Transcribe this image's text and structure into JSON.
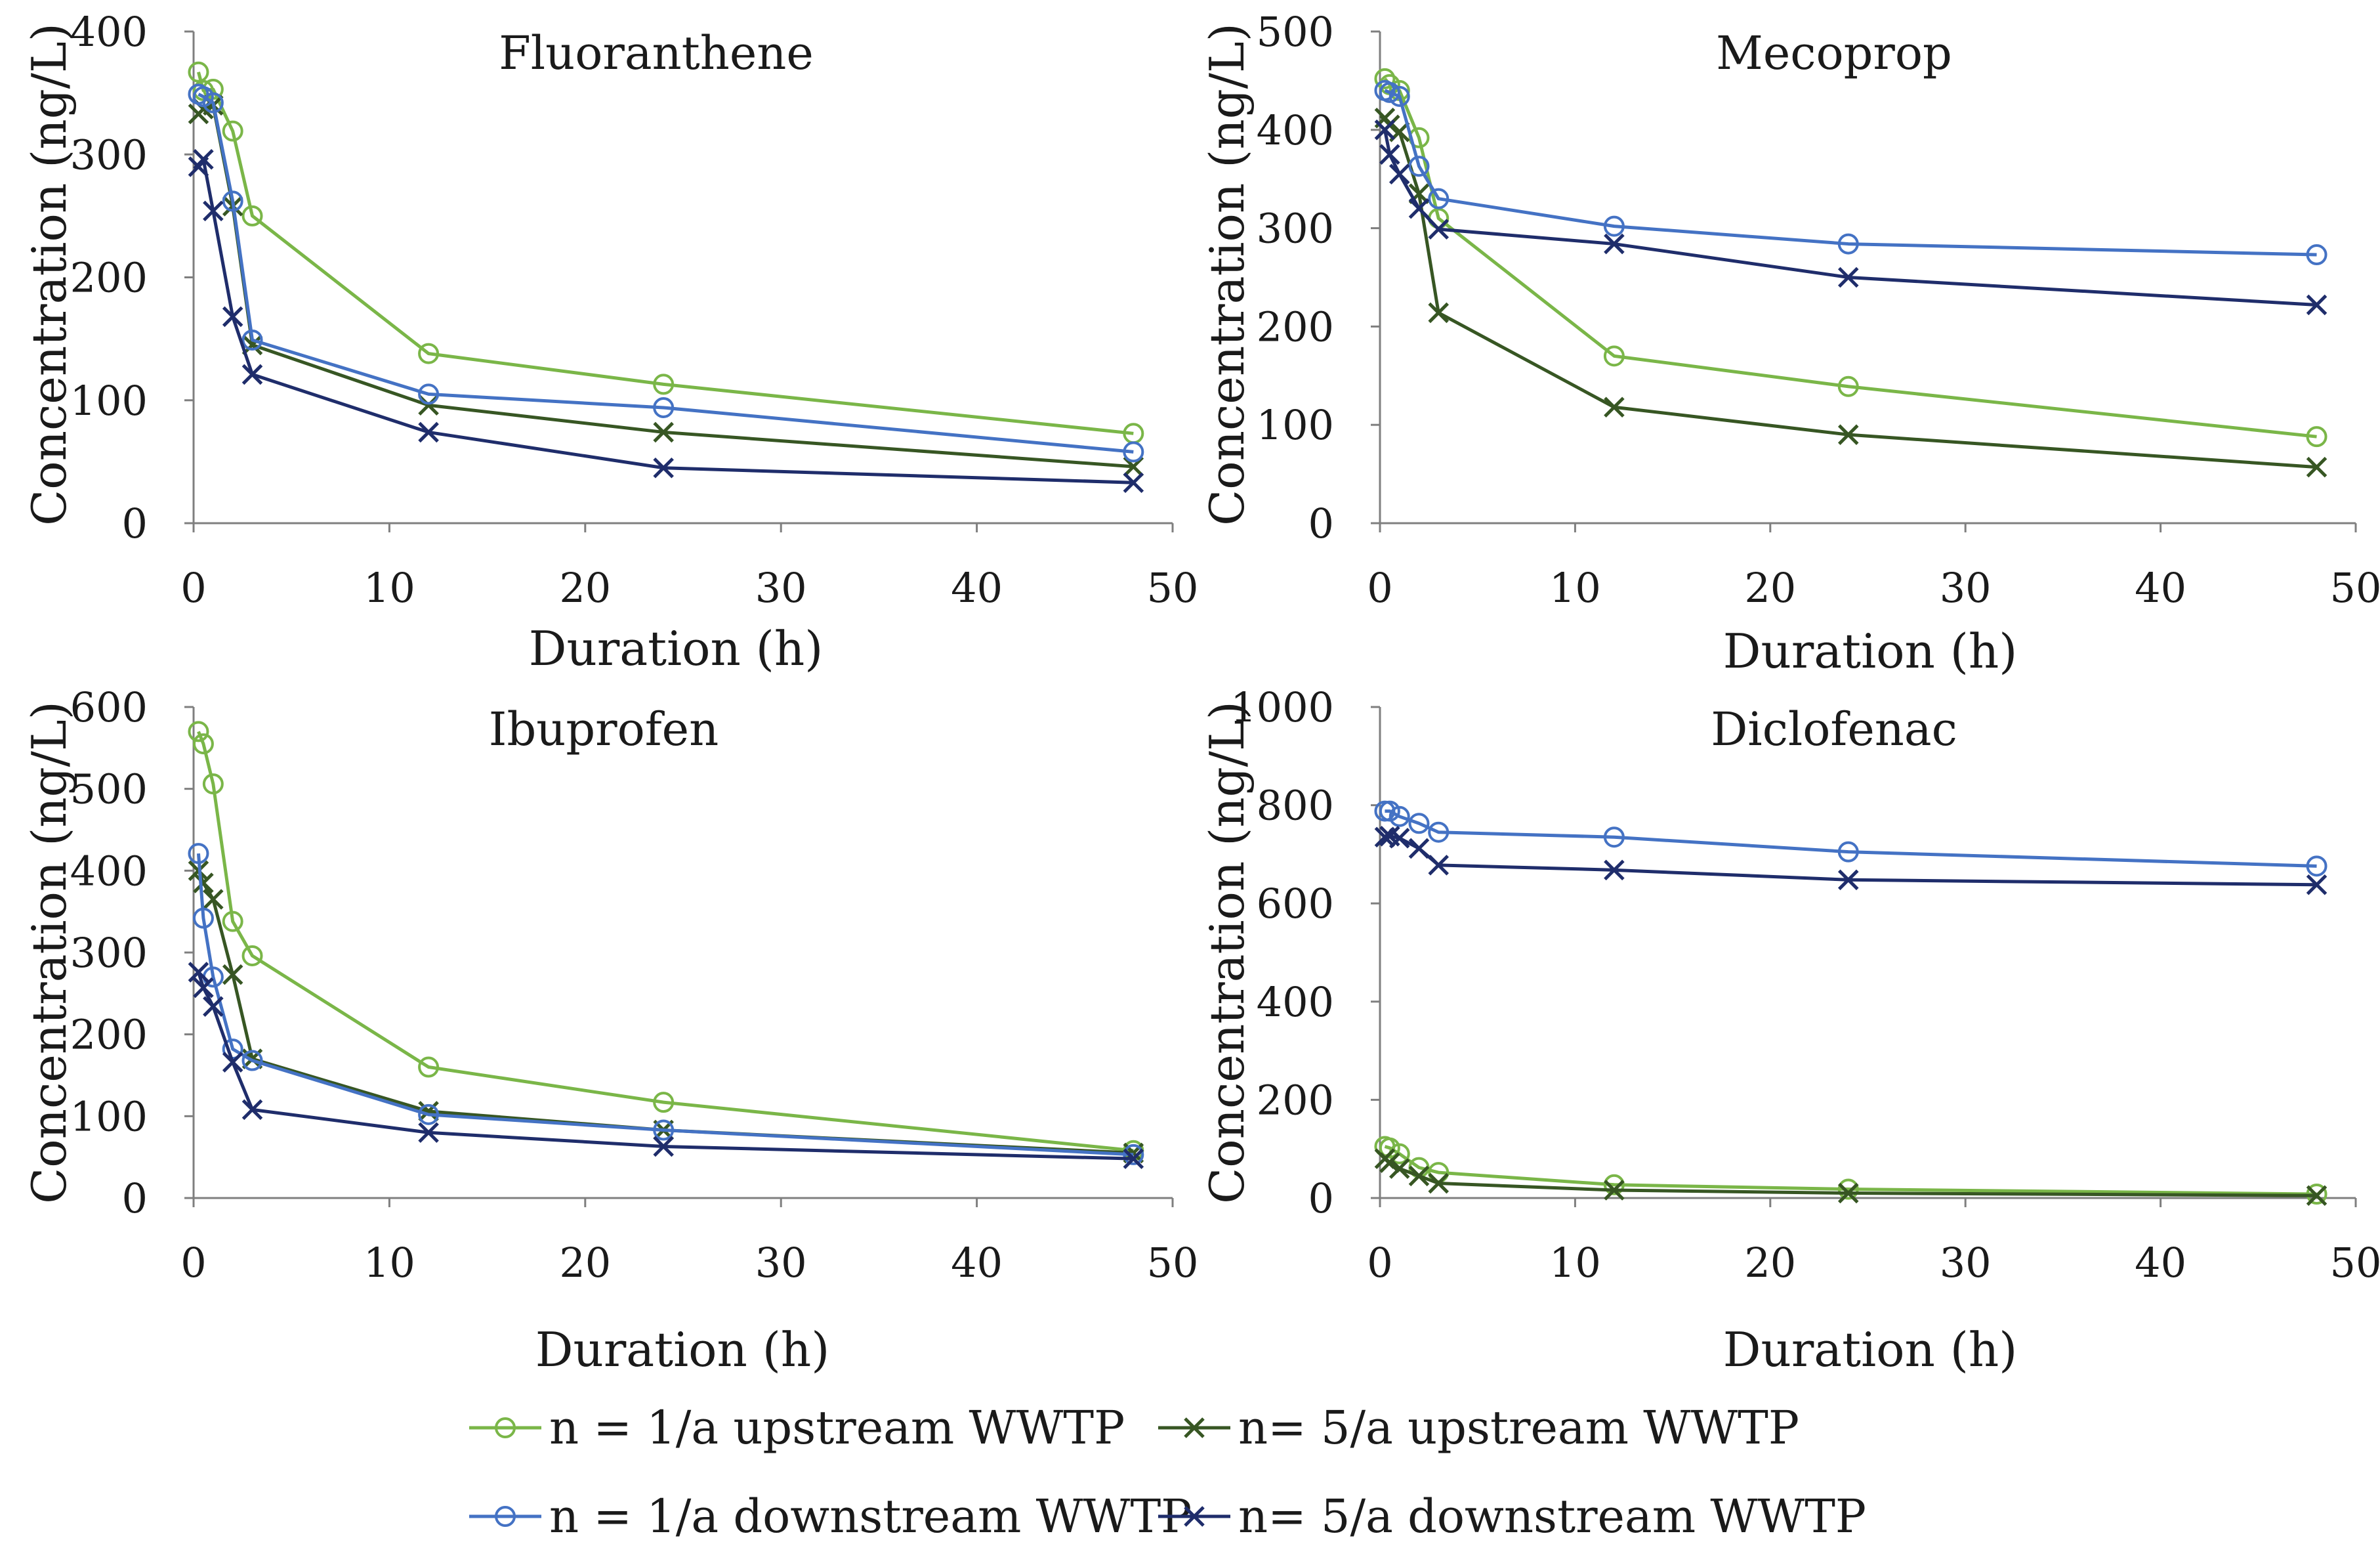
{
  "figure": {
    "legend": [
      {
        "label": "n = 1/a upstream WWTP",
        "color": "#7AB648",
        "marker": "circle"
      },
      {
        "label": "n= 5/a upstream WWTP",
        "color": "#375623",
        "marker": "x"
      },
      {
        "label": "n = 1/a downstream WWTP",
        "color": "#4472C4",
        "marker": "circle"
      },
      {
        "label": "n= 5/a downstream WWTP",
        "color": "#1F2D6B",
        "marker": "x"
      }
    ]
  },
  "chart_data": [
    {
      "type": "line",
      "title": "Fluoranthene",
      "xlabel": "Duration (h)",
      "ylabel": "Concentration (ng/L)",
      "xlim": [
        0,
        50
      ],
      "ylim": [
        0,
        400
      ],
      "xticks": [
        0,
        10,
        20,
        30,
        40,
        50
      ],
      "yticks": [
        0,
        100,
        200,
        300,
        400
      ],
      "x": [
        0.25,
        0.5,
        1,
        2,
        3,
        12,
        24,
        48
      ],
      "series": [
        {
          "name": "n = 1/a upstream WWTP",
          "values": [
            367,
            352,
            353,
            319,
            250,
            138,
            113,
            73
          ]
        },
        {
          "name": "n= 5/a upstream WWTP",
          "values": [
            333,
            337,
            340,
            258,
            145,
            96,
            74,
            46
          ]
        },
        {
          "name": "n = 1/a downstream WWTP",
          "values": [
            349,
            347,
            342,
            262,
            149,
            105,
            94,
            58
          ]
        },
        {
          "name": "n= 5/a downstream WWTP",
          "values": [
            290,
            296,
            254,
            168,
            121,
            74,
            45,
            33
          ]
        }
      ]
    },
    {
      "type": "line",
      "title": "Mecoprop",
      "xlabel": "Duration (h)",
      "ylabel": "Concentration (ng/L)",
      "xlim": [
        0,
        50
      ],
      "ylim": [
        0,
        500
      ],
      "xticks": [
        0,
        10,
        20,
        30,
        40,
        50
      ],
      "yticks": [
        0,
        100,
        200,
        300,
        400,
        500
      ],
      "x": [
        0.25,
        0.5,
        1,
        2,
        3,
        12,
        24,
        48
      ],
      "series": [
        {
          "name": "n = 1/a upstream WWTP",
          "values": [
            452,
            446,
            440,
            392,
            310,
            170,
            139,
            88
          ]
        },
        {
          "name": "n= 5/a upstream WWTP",
          "values": [
            412,
            405,
            398,
            335,
            214,
            118,
            90,
            57
          ]
        },
        {
          "name": "n = 1/a downstream WWTP",
          "values": [
            440,
            438,
            434,
            363,
            330,
            302,
            284,
            273
          ]
        },
        {
          "name": "n= 5/a downstream WWTP",
          "values": [
            400,
            375,
            355,
            320,
            299,
            284,
            250,
            222
          ]
        }
      ]
    },
    {
      "type": "line",
      "title": "Ibuprofen",
      "xlabel": "Duration (h)",
      "ylabel": "Concentration (ng/L)",
      "xlim": [
        0,
        50
      ],
      "ylim": [
        0,
        600
      ],
      "xticks": [
        0,
        10,
        20,
        30,
        40,
        50
      ],
      "yticks": [
        0,
        100,
        200,
        300,
        400,
        500,
        600
      ],
      "x": [
        0.25,
        0.5,
        1,
        2,
        3,
        12,
        24,
        48
      ],
      "series": [
        {
          "name": "n = 1/a upstream WWTP",
          "values": [
            570,
            555,
            506,
            338,
            296,
            160,
            117,
            58
          ]
        },
        {
          "name": "n= 5/a upstream WWTP",
          "values": [
            400,
            385,
            365,
            273,
            170,
            106,
            83,
            55
          ]
        },
        {
          "name": "n = 1/a downstream WWTP",
          "values": [
            421,
            342,
            270,
            182,
            168,
            102,
            83,
            53
          ]
        },
        {
          "name": "n= 5/a downstream WWTP",
          "values": [
            276,
            257,
            234,
            166,
            108,
            80,
            63,
            48
          ]
        }
      ]
    },
    {
      "type": "line",
      "title": "Diclofenac",
      "xlabel": "Duration (h)",
      "ylabel": "Concentration (ng/L)",
      "xlim": [
        0,
        50
      ],
      "ylim": [
        0,
        1000
      ],
      "xticks": [
        0,
        10,
        20,
        30,
        40,
        50
      ],
      "yticks": [
        0,
        200,
        400,
        600,
        800,
        1000
      ],
      "x": [
        0.25,
        0.5,
        1,
        2,
        3,
        12,
        24,
        48
      ],
      "series": [
        {
          "name": "n = 1/a upstream WWTP",
          "values": [
            105,
            102,
            90,
            62,
            52,
            27,
            18,
            8
          ]
        },
        {
          "name": "n= 5/a upstream WWTP",
          "values": [
            80,
            72,
            60,
            45,
            30,
            16,
            10,
            5
          ]
        },
        {
          "name": "n = 1/a downstream WWTP",
          "values": [
            788,
            788,
            777,
            763,
            745,
            735,
            705,
            676
          ]
        },
        {
          "name": "n= 5/a downstream WWTP",
          "values": [
            735,
            737,
            733,
            712,
            678,
            668,
            648,
            638
          ]
        }
      ]
    }
  ]
}
